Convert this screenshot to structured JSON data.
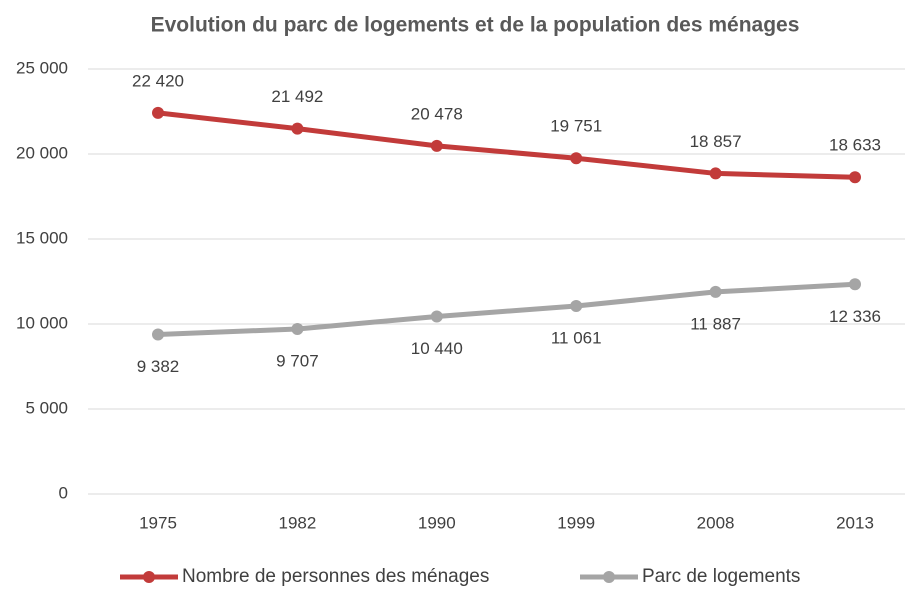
{
  "chart_data": {
    "type": "line",
    "title": "Evolution du parc de logements et de la population des ménages",
    "categories": [
      "1975",
      "1982",
      "1990",
      "1999",
      "2008",
      "2013"
    ],
    "series": [
      {
        "name": "Nombre de personnes des ménages",
        "color": "#c23b3a",
        "values": [
          22420,
          21492,
          20478,
          19751,
          18857,
          18633
        ],
        "value_labels": [
          "22 420",
          "21 492",
          "20 478",
          "19 751",
          "18 857",
          "18 633"
        ]
      },
      {
        "name": "Parc de logements",
        "color": "#a5a5a5",
        "values": [
          9382,
          9707,
          10440,
          11061,
          11887,
          12336
        ],
        "value_labels": [
          "9 382",
          "9 707",
          "10 440",
          "11 061",
          "11 887",
          "12 336"
        ]
      }
    ],
    "ylim": [
      0,
      25000
    ],
    "yticks": [
      0,
      {
        "value": 5000,
        "label": "5 000"
      },
      {
        "value": 10000,
        "label": "10 000"
      },
      {
        "value": 15000,
        "label": "15 000"
      },
      {
        "value": 20000,
        "label": "20 000"
      },
      {
        "value": 25000,
        "label": "25 000"
      }
    ],
    "grid": true,
    "legend": "bottom"
  }
}
